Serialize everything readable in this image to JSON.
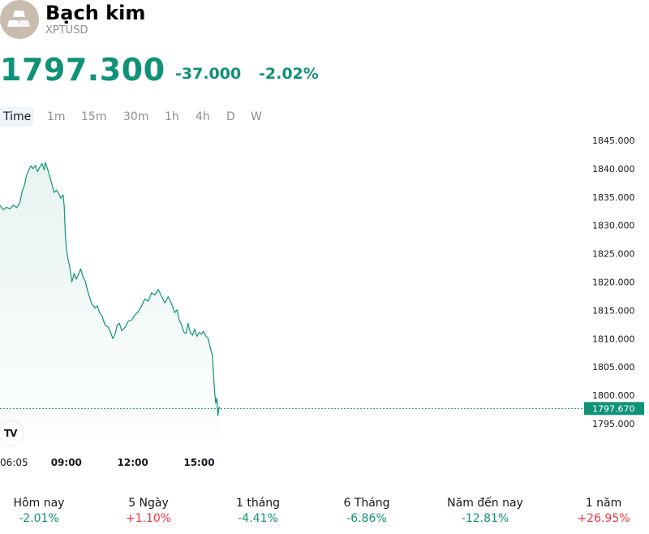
{
  "header": {
    "title": "Bạch kim",
    "ticker": "XPTUSD",
    "logo_icon": "platinum-bars-icon"
  },
  "quote": {
    "price": "1797.300",
    "change": "-37.000",
    "change_percent": "-2.02%",
    "color": "#109278"
  },
  "tabs": [
    {
      "label": "Time",
      "active": true
    },
    {
      "label": "1m"
    },
    {
      "label": "15m"
    },
    {
      "label": "30m"
    },
    {
      "label": "1h"
    },
    {
      "label": "4h"
    },
    {
      "label": "D"
    },
    {
      "label": "W"
    }
  ],
  "chart_data": {
    "type": "area",
    "ylim": [
      1792.5,
      1846.2
    ],
    "y_ticks": [
      "1845.000",
      "1840.000",
      "1835.000",
      "1830.000",
      "1825.000",
      "1820.000",
      "1815.000",
      "1810.000",
      "1805.000",
      "1800.000",
      "1795.000"
    ],
    "x_ticks": [
      "06:05",
      "09:00",
      "12:00",
      "15:00"
    ],
    "x_tick_hours": [
      6.083,
      9.0,
      12.0,
      15.0
    ],
    "x_domain_hours": [
      6.0,
      32.4
    ],
    "last_value_label": "1797.670",
    "last_value": 1797.67,
    "line_color": "#109278",
    "grid": false,
    "points": [
      [
        6.0,
        1833.5
      ],
      [
        6.15,
        1832.8
      ],
      [
        6.3,
        1833.2
      ],
      [
        6.45,
        1832.9
      ],
      [
        6.6,
        1833.6
      ],
      [
        6.75,
        1833.1
      ],
      [
        6.9,
        1834.0
      ],
      [
        7.0,
        1836.0
      ],
      [
        7.1,
        1837.0
      ],
      [
        7.2,
        1838.8
      ],
      [
        7.3,
        1839.8
      ],
      [
        7.4,
        1840.5
      ],
      [
        7.5,
        1840.0
      ],
      [
        7.6,
        1840.6
      ],
      [
        7.7,
        1839.5
      ],
      [
        7.8,
        1840.3
      ],
      [
        7.9,
        1840.9
      ],
      [
        8.0,
        1839.8
      ],
      [
        8.05,
        1841.1
      ],
      [
        8.15,
        1840.0
      ],
      [
        8.25,
        1838.6
      ],
      [
        8.35,
        1837.2
      ],
      [
        8.45,
        1835.8
      ],
      [
        8.55,
        1836.2
      ],
      [
        8.65,
        1835.6
      ],
      [
        8.75,
        1834.8
      ],
      [
        8.85,
        1835.4
      ],
      [
        8.9,
        1833.5
      ],
      [
        8.95,
        1828.5
      ],
      [
        9.0,
        1826.0
      ],
      [
        9.05,
        1824.5
      ],
      [
        9.15,
        1822.7
      ],
      [
        9.25,
        1820.0
      ],
      [
        9.35,
        1821.5
      ],
      [
        9.45,
        1820.5
      ],
      [
        9.55,
        1821.4
      ],
      [
        9.65,
        1822.3
      ],
      [
        9.75,
        1820.9
      ],
      [
        9.85,
        1820.2
      ],
      [
        9.95,
        1818.6
      ],
      [
        10.05,
        1817.3
      ],
      [
        10.15,
        1816.1
      ],
      [
        10.3,
        1815.4
      ],
      [
        10.4,
        1815.8
      ],
      [
        10.5,
        1814.6
      ],
      [
        10.6,
        1814.1
      ],
      [
        10.75,
        1812.4
      ],
      [
        10.9,
        1812.0
      ],
      [
        11.0,
        1811.1
      ],
      [
        11.1,
        1810.0
      ],
      [
        11.2,
        1810.8
      ],
      [
        11.3,
        1812.4
      ],
      [
        11.4,
        1812.7
      ],
      [
        11.5,
        1811.4
      ],
      [
        11.65,
        1812.0
      ],
      [
        11.8,
        1813.1
      ],
      [
        11.95,
        1813.3
      ],
      [
        12.1,
        1814.2
      ],
      [
        12.25,
        1814.8
      ],
      [
        12.4,
        1815.8
      ],
      [
        12.55,
        1817.0
      ],
      [
        12.7,
        1816.6
      ],
      [
        12.85,
        1818.1
      ],
      [
        13.0,
        1817.7
      ],
      [
        13.15,
        1818.7
      ],
      [
        13.3,
        1817.5
      ],
      [
        13.45,
        1816.3
      ],
      [
        13.6,
        1817.4
      ],
      [
        13.75,
        1816.2
      ],
      [
        13.9,
        1814.6
      ],
      [
        14.0,
        1815.1
      ],
      [
        14.1,
        1813.3
      ],
      [
        14.2,
        1812.6
      ],
      [
        14.3,
        1811.2
      ],
      [
        14.4,
        1810.9
      ],
      [
        14.5,
        1812.7
      ],
      [
        14.6,
        1811.1
      ],
      [
        14.7,
        1810.6
      ],
      [
        14.8,
        1811.7
      ],
      [
        14.9,
        1810.4
      ],
      [
        15.0,
        1811.1
      ],
      [
        15.1,
        1810.8
      ],
      [
        15.2,
        1811.3
      ],
      [
        15.3,
        1810.5
      ],
      [
        15.4,
        1810.1
      ],
      [
        15.5,
        1808.5
      ],
      [
        15.6,
        1807.0
      ],
      [
        15.65,
        1803.5
      ],
      [
        15.7,
        1800.8
      ],
      [
        15.75,
        1798.6
      ],
      [
        15.8,
        1799.5
      ],
      [
        15.85,
        1796.4
      ],
      [
        15.9,
        1797.9
      ],
      [
        15.95,
        1797.67
      ]
    ]
  },
  "performance": [
    {
      "label": "Hôm nay",
      "value": "-2.01%",
      "sign": "neg"
    },
    {
      "label": "5 Ngày",
      "value": "+1.10%",
      "sign": "pos"
    },
    {
      "label": "1 tháng",
      "value": "-4.41%",
      "sign": "neg"
    },
    {
      "label": "6 Tháng",
      "value": "-6.86%",
      "sign": "neg"
    },
    {
      "label": "Năm đến nay",
      "value": "-12.81%",
      "sign": "neg"
    },
    {
      "label": "1 năm",
      "value": "+26.95%",
      "sign": "pos"
    }
  ],
  "icons": {
    "tradingview": "tradingview-logo-icon"
  },
  "tradingview_mark": "TV"
}
